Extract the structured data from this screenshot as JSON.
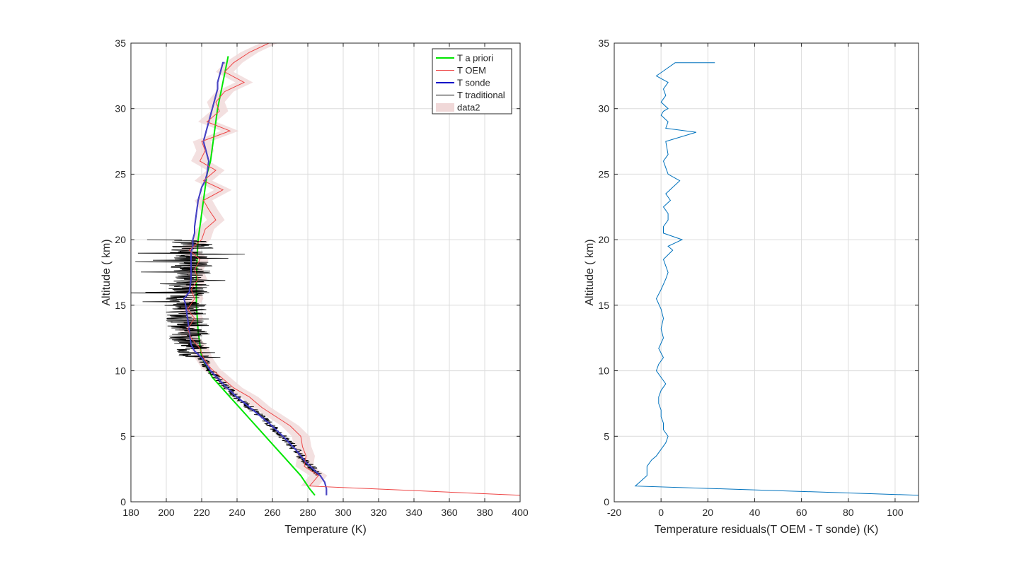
{
  "chart_data": [
    {
      "type": "line",
      "xlabel": "Temperature (K)",
      "ylabel": "Altitude ( km)",
      "xlim": [
        180,
        400
      ],
      "ylim": [
        0,
        35
      ],
      "xticks": [
        180,
        200,
        220,
        240,
        260,
        280,
        300,
        320,
        340,
        360,
        380,
        400
      ],
      "yticks": [
        0,
        5,
        10,
        15,
        20,
        25,
        30,
        35
      ],
      "grid": true,
      "legend_position": "top-right",
      "legend": [
        "T a priori",
        "T OEM",
        "T sonde",
        "T traditional",
        "data2"
      ],
      "series": [
        {
          "name": "T a priori",
          "color": "#00e600",
          "x": [
            284,
            281,
            276,
            266,
            256,
            246,
            236,
            226,
            222,
            220,
            219,
            218,
            217.5,
            217,
            217,
            217.5,
            218,
            219,
            220,
            221,
            222,
            223,
            225,
            227,
            229,
            232,
            235
          ],
          "y": [
            0.5,
            1,
            2,
            3.5,
            5,
            6.5,
            8,
            9.5,
            10.5,
            11,
            12,
            13,
            14,
            15,
            17,
            19,
            20,
            21,
            22,
            23,
            24,
            25,
            26,
            28,
            30,
            32,
            34
          ]
        },
        {
          "name": "T OEM",
          "color": "#ee4444",
          "x": [
            400,
            281,
            286,
            278,
            279,
            277,
            276,
            270,
            262,
            254,
            247,
            238,
            231,
            225,
            221,
            219,
            214,
            212,
            216,
            212,
            216,
            214,
            218,
            216,
            219,
            213,
            220,
            222,
            228,
            224,
            221,
            232,
            221,
            228,
            219,
            222,
            220,
            236,
            223,
            230,
            228,
            233,
            244,
            233,
            238,
            247,
            258,
            238,
            239
          ],
          "y": [
            0.5,
            1.2,
            2,
            2.7,
            3.5,
            4.2,
            5,
            5.8,
            6.5,
            7.2,
            8,
            8.7,
            9.5,
            10.2,
            11,
            11.7,
            12.5,
            13.2,
            14,
            14.7,
            15.5,
            16.2,
            17,
            17.7,
            18.5,
            19.2,
            20,
            20.8,
            21.5,
            22.3,
            23,
            23.8,
            24.5,
            25.3,
            26,
            26.8,
            27.5,
            28.3,
            29,
            29.8,
            30.5,
            31.3,
            32,
            32.8,
            33.5,
            34.3,
            35,
            35,
            35
          ],
          "band_halfwidth": 5
        },
        {
          "name": "T sonde",
          "color": "#0000c8",
          "x": [
            290.5,
            290.5,
            289.5,
            287,
            283,
            279,
            273,
            266,
            258,
            249,
            240,
            232,
            225,
            220,
            216,
            214,
            213,
            212,
            211,
            210,
            213,
            214,
            214,
            214,
            215,
            215,
            216,
            216,
            217,
            218,
            220,
            222,
            223,
            224,
            222,
            221,
            222,
            223,
            224,
            226,
            228,
            229,
            229,
            230,
            231,
            232,
            233
          ],
          "y": [
            0.5,
            1,
            1.5,
            2,
            2.5,
            3,
            4,
            5,
            6,
            7,
            8,
            9,
            10,
            11,
            11.5,
            12,
            13,
            14,
            15,
            15.5,
            16,
            17,
            18,
            19,
            19.5,
            20,
            20.5,
            21,
            22,
            23,
            24,
            24.5,
            25,
            26,
            27,
            27.5,
            28,
            28.5,
            29,
            30,
            31,
            31.5,
            32,
            32.5,
            33,
            33.5,
            33.5
          ]
        },
        {
          "name": "T traditional",
          "color": "#000000",
          "generated_noise": true,
          "range_y": [
            2,
            20
          ],
          "x_start": 292,
          "noise_amplitude_high": 12,
          "noise_amplitude_low": 3
        },
        {
          "name": "data2",
          "color": "#f0d8d8",
          "type": "area",
          "description": "uncertainty band around T OEM"
        }
      ]
    },
    {
      "type": "line",
      "xlabel": "Temperature residuals(T OEM - T sonde) (K)",
      "ylabel": "Altitude ( km)",
      "xlim": [
        -20,
        110
      ],
      "ylim": [
        0,
        35
      ],
      "xticks": [
        -20,
        0,
        20,
        40,
        60,
        80,
        100
      ],
      "yticks": [
        0,
        5,
        10,
        15,
        20,
        25,
        30,
        35
      ],
      "grid": true,
      "series": [
        {
          "name": "",
          "color": "#0072bd",
          "x": [
            110,
            -11,
            -6,
            -6,
            -4,
            -2,
            0,
            2,
            3,
            1,
            1,
            0,
            0,
            -1,
            -1,
            0,
            2,
            -2,
            -1,
            1,
            -1,
            1,
            0,
            1,
            0,
            -2,
            0,
            2,
            3,
            2,
            1,
            5,
            3,
            9,
            1,
            1,
            3,
            3,
            1,
            4,
            2,
            8,
            3,
            2,
            1,
            3,
            2,
            15,
            2,
            3,
            0,
            1,
            3,
            0,
            2,
            1,
            3,
            -2,
            2,
            6,
            8,
            15,
            5,
            9,
            4,
            10,
            8,
            2,
            1,
            12,
            23
          ],
          "y": [
            0.5,
            1.2,
            2,
            2.7,
            3.2,
            3.5,
            4,
            4.5,
            5,
            5.5,
            6,
            6.5,
            7,
            7.5,
            8,
            8.5,
            9,
            10,
            10.5,
            11,
            11.7,
            12.5,
            13.2,
            14,
            14.7,
            15.5,
            16.2,
            17,
            17.5,
            18,
            18.5,
            19.2,
            19.5,
            20,
            20.5,
            21,
            21.5,
            22,
            22.5,
            23,
            23.5,
            24.5,
            25,
            25.5,
            26,
            26.5,
            27.5,
            28.2,
            28.5,
            29,
            29.5,
            29.8,
            30,
            30.5,
            31,
            31.5,
            32,
            32.5,
            33,
            33.5,
            33.5,
            33.5,
            33.5,
            33.5,
            33.5,
            33.5,
            33.5,
            33.5,
            33.5,
            33.5,
            33.5
          ]
        }
      ]
    }
  ]
}
